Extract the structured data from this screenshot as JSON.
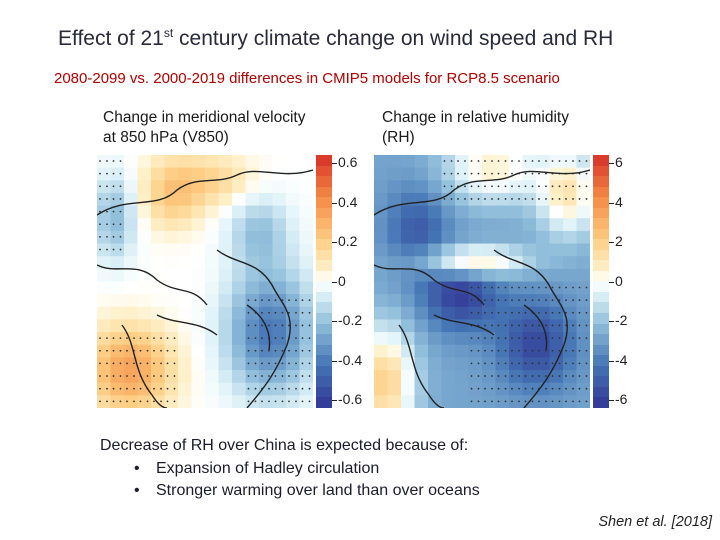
{
  "slide": {
    "title_pre": "Effect of 21",
    "title_sup": "st",
    "title_post": " century climate change on wind speed and RH",
    "subtitle": "2080-2099 vs. 2000-2019 differences in CMIP5 models for RCP8.5 scenario",
    "explanation": "Decrease of RH over China is expected because of:",
    "bullets": [
      "Expansion of Hadley circulation",
      "Stronger warming over land than over oceans"
    ],
    "citation": "Shen et al. [2018]"
  },
  "panels": [
    {
      "label_line1": "Change in meridional velocity",
      "label_line2": "at 850 hPa (V850)",
      "colorbar_ticks": [
        "0.6",
        "0.4",
        "0.2",
        "0",
        "-0.2",
        "-0.4",
        "-0.6"
      ],
      "colorbar_range": [
        -0.6,
        0.6
      ]
    },
    {
      "label_line1": "Change in relative humidity",
      "label_line2": "(RH)",
      "colorbar_ticks": [
        "6",
        "4",
        "2",
        "0",
        "-2",
        "-4",
        "-6"
      ],
      "colorbar_range": [
        -6,
        6
      ]
    }
  ],
  "colors": {
    "positive": "#d7301f",
    "negative": "#2b4fa8",
    "title": "#2a2a3a",
    "subtitle": "#b00000"
  }
}
